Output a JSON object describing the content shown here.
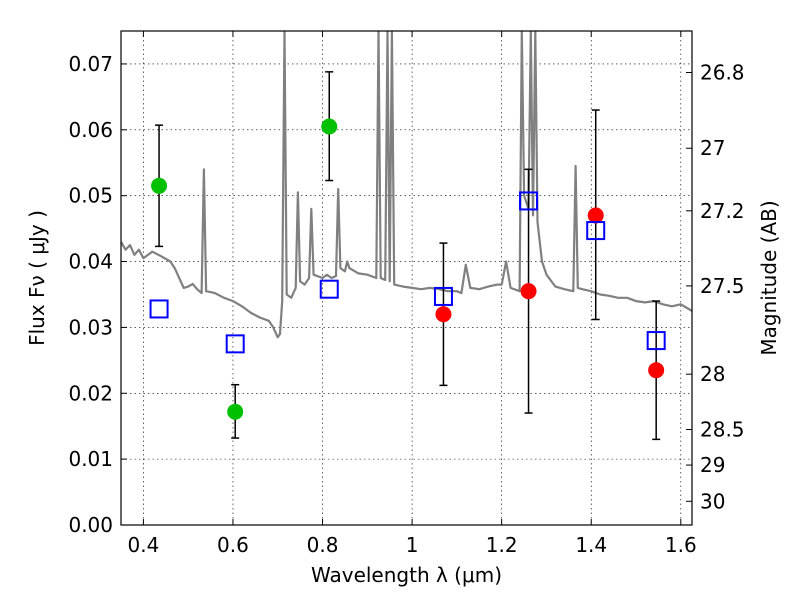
{
  "chart_data": {
    "type": "scatter",
    "xlabel": "Wavelength  λ (μm)",
    "ylabel": "Flux  Fν  ( μJy )",
    "ylabel_right": "Magnitude (AB)",
    "xlim": [
      0.35,
      1.625
    ],
    "ylim": [
      0.0,
      0.075
    ],
    "grid": true,
    "x_ticks": [
      0.4,
      0.6,
      0.8,
      1.0,
      1.2,
      1.4,
      1.6
    ],
    "x_tick_labels": [
      "0.4",
      "0.6",
      "0.8",
      "1",
      "1.2",
      "1.4",
      "1.6"
    ],
    "y_ticks": [
      0.0,
      0.01,
      0.02,
      0.03,
      0.04,
      0.05,
      0.06,
      0.07
    ],
    "y_tick_labels": [
      "0.00",
      "0.01",
      "0.02",
      "0.03",
      "0.04",
      "0.05",
      "0.06",
      "0.07"
    ],
    "right_ticks": [
      {
        "flux": 0.0687,
        "label": "26.8"
      },
      {
        "flux": 0.0572,
        "label": "27"
      },
      {
        "flux": 0.0477,
        "label": "27.2"
      },
      {
        "flux": 0.0363,
        "label": "27.5"
      },
      {
        "flux": 0.0229,
        "label": "28"
      },
      {
        "flux": 0.0145,
        "label": "28.5"
      },
      {
        "flux": 0.0091,
        "label": "29"
      },
      {
        "flux": 0.0036,
        "label": "30"
      }
    ],
    "colors": {
      "spectrum": "#808080",
      "observed_green": "#00c000",
      "observed_red": "#ff0000",
      "model": "#0000ff",
      "errorbar": "#000000"
    },
    "series": [
      {
        "name": "model spectrum",
        "kind": "line",
        "points": [
          [
            0.35,
            0.043
          ],
          [
            0.36,
            0.0418
          ],
          [
            0.37,
            0.0425
          ],
          [
            0.38,
            0.041
          ],
          [
            0.39,
            0.0418
          ],
          [
            0.4,
            0.0405
          ],
          [
            0.42,
            0.0415
          ],
          [
            0.44,
            0.0408
          ],
          [
            0.46,
            0.04
          ],
          [
            0.47,
            0.039
          ],
          [
            0.48,
            0.0375
          ],
          [
            0.49,
            0.036
          ],
          [
            0.5,
            0.0362
          ],
          [
            0.51,
            0.0366
          ],
          [
            0.52,
            0.0358
          ],
          [
            0.53,
            0.0352
          ],
          [
            0.535,
            0.054
          ],
          [
            0.54,
            0.0355
          ],
          [
            0.56,
            0.0352
          ],
          [
            0.58,
            0.0345
          ],
          [
            0.6,
            0.034
          ],
          [
            0.62,
            0.0332
          ],
          [
            0.64,
            0.0322
          ],
          [
            0.66,
            0.0315
          ],
          [
            0.68,
            0.031
          ],
          [
            0.69,
            0.03
          ],
          [
            0.7,
            0.0285
          ],
          [
            0.705,
            0.029
          ],
          [
            0.71,
            0.034
          ],
          [
            0.715,
            0.075
          ],
          [
            0.72,
            0.035
          ],
          [
            0.73,
            0.0345
          ],
          [
            0.74,
            0.036
          ],
          [
            0.745,
            0.0505
          ],
          [
            0.75,
            0.037
          ],
          [
            0.76,
            0.0365
          ],
          [
            0.77,
            0.0375
          ],
          [
            0.775,
            0.048
          ],
          [
            0.78,
            0.038
          ],
          [
            0.8,
            0.0375
          ],
          [
            0.81,
            0.038
          ],
          [
            0.82,
            0.0375
          ],
          [
            0.83,
            0.0378
          ],
          [
            0.835,
            0.051
          ],
          [
            0.84,
            0.039
          ],
          [
            0.85,
            0.0385
          ],
          [
            0.855,
            0.04
          ],
          [
            0.86,
            0.039
          ],
          [
            0.88,
            0.0382
          ],
          [
            0.9,
            0.038
          ],
          [
            0.92,
            0.0375
          ],
          [
            0.925,
            0.075
          ],
          [
            0.93,
            0.0375
          ],
          [
            0.94,
            0.0372
          ],
          [
            0.945,
            0.075
          ],
          [
            0.95,
            0.037
          ],
          [
            0.955,
            0.075
          ],
          [
            0.96,
            0.0365
          ],
          [
            0.98,
            0.0362
          ],
          [
            1.0,
            0.036
          ],
          [
            1.02,
            0.0358
          ],
          [
            1.04,
            0.036
          ],
          [
            1.06,
            0.0358
          ],
          [
            1.08,
            0.0355
          ],
          [
            1.1,
            0.0355
          ],
          [
            1.11,
            0.0352
          ],
          [
            1.12,
            0.0395
          ],
          [
            1.13,
            0.036
          ],
          [
            1.15,
            0.0358
          ],
          [
            1.17,
            0.0362
          ],
          [
            1.19,
            0.0365
          ],
          [
            1.2,
            0.0365
          ],
          [
            1.21,
            0.04
          ],
          [
            1.22,
            0.036
          ],
          [
            1.24,
            0.0355
          ],
          [
            1.245,
            0.075
          ],
          [
            1.25,
            0.05
          ],
          [
            1.26,
            0.048
          ],
          [
            1.265,
            0.075
          ],
          [
            1.27,
            0.047
          ],
          [
            1.275,
            0.075
          ],
          [
            1.28,
            0.046
          ],
          [
            1.29,
            0.04
          ],
          [
            1.3,
            0.038
          ],
          [
            1.32,
            0.0362
          ],
          [
            1.34,
            0.0358
          ],
          [
            1.36,
            0.0355
          ],
          [
            1.365,
            0.0545
          ],
          [
            1.37,
            0.036
          ],
          [
            1.38,
            0.0358
          ],
          [
            1.4,
            0.0355
          ],
          [
            1.42,
            0.035
          ],
          [
            1.44,
            0.0348
          ],
          [
            1.46,
            0.0345
          ],
          [
            1.48,
            0.0345
          ],
          [
            1.5,
            0.034
          ],
          [
            1.52,
            0.0338
          ],
          [
            1.54,
            0.034
          ],
          [
            1.56,
            0.0335
          ],
          [
            1.58,
            0.0332
          ],
          [
            1.6,
            0.0335
          ],
          [
            1.625,
            0.0325
          ]
        ]
      },
      {
        "name": "observed (green)",
        "kind": "marker",
        "points": [
          {
            "x": 0.435,
            "y": 0.0515,
            "err_low": 0.0423,
            "err_high": 0.0607
          },
          {
            "x": 0.605,
            "y": 0.0172,
            "err_low": 0.0132,
            "err_high": 0.0213
          },
          {
            "x": 0.815,
            "y": 0.0605,
            "err_low": 0.0523,
            "err_high": 0.0688
          }
        ]
      },
      {
        "name": "observed (red)",
        "kind": "marker",
        "points": [
          {
            "x": 1.07,
            "y": 0.032,
            "err_low": 0.0212,
            "err_high": 0.0428
          },
          {
            "x": 1.26,
            "y": 0.0355,
            "err_low": 0.017,
            "err_high": 0.054
          },
          {
            "x": 1.41,
            "y": 0.047,
            "err_low": 0.0312,
            "err_high": 0.063
          },
          {
            "x": 1.545,
            "y": 0.0235,
            "err_low": 0.013,
            "err_high": 0.034
          }
        ]
      },
      {
        "name": "model photometry",
        "kind": "marker",
        "points": [
          {
            "x": 0.435,
            "y": 0.0328
          },
          {
            "x": 0.605,
            "y": 0.0275
          },
          {
            "x": 0.815,
            "y": 0.0358
          },
          {
            "x": 1.07,
            "y": 0.0347
          },
          {
            "x": 1.26,
            "y": 0.0492
          },
          {
            "x": 1.41,
            "y": 0.0447
          },
          {
            "x": 1.545,
            "y": 0.028
          }
        ]
      }
    ]
  }
}
